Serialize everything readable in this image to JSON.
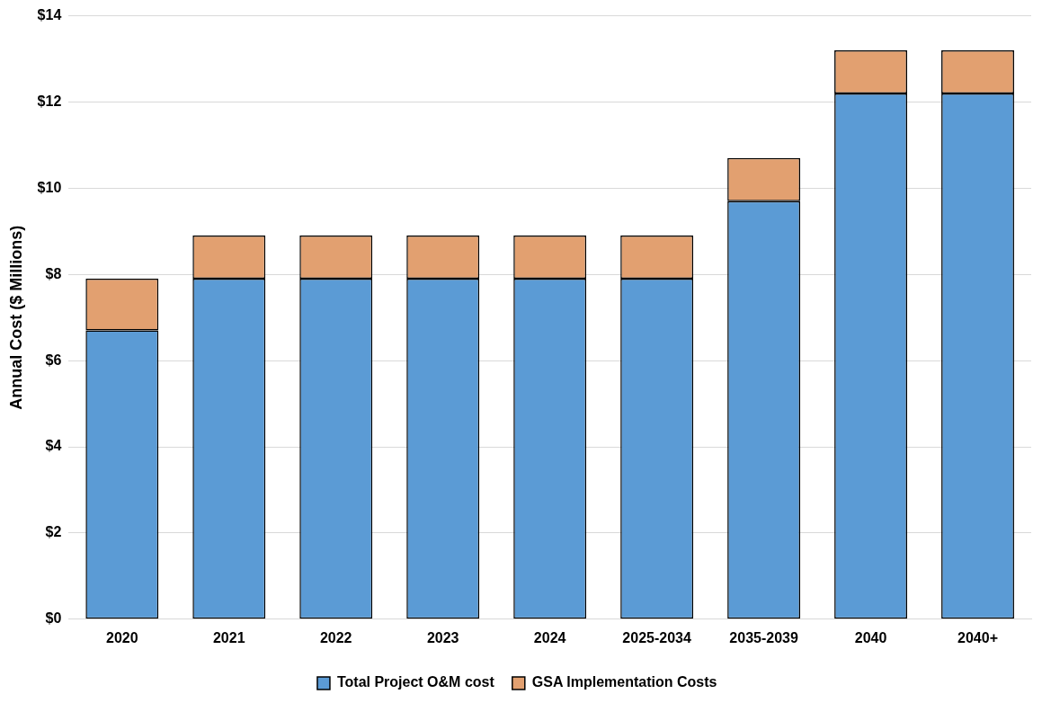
{
  "chart_data": {
    "type": "bar",
    "ylabel": "Annual Cost ($ Millions)",
    "stacked": true,
    "categories": [
      "2020",
      "2021",
      "2022",
      "2023",
      "2024",
      "2025-2034",
      "2035-2039",
      "2040",
      "2040+"
    ],
    "series": [
      {
        "name": "Total Project O&M cost",
        "color": "#5b9bd5",
        "values": [
          6.7,
          7.9,
          7.9,
          7.9,
          7.9,
          7.9,
          9.7,
          12.2,
          12.2
        ]
      },
      {
        "name": "GSA Implementation Costs",
        "color": "#e2a070",
        "values": [
          1.2,
          1.0,
          1.0,
          1.0,
          1.0,
          1.0,
          1.0,
          1.0,
          1.0
        ]
      }
    ],
    "ylim": [
      0,
      14
    ],
    "yticks": [
      {
        "value": 0,
        "label": "$0"
      },
      {
        "value": 2,
        "label": "$2"
      },
      {
        "value": 4,
        "label": "$4"
      },
      {
        "value": 6,
        "label": "$6"
      },
      {
        "value": 8,
        "label": "$8"
      },
      {
        "value": 10,
        "label": "$10"
      },
      {
        "value": 12,
        "label": "$12"
      },
      {
        "value": 14,
        "label": "$14"
      }
    ],
    "grid": "y",
    "legend": "bottom"
  }
}
